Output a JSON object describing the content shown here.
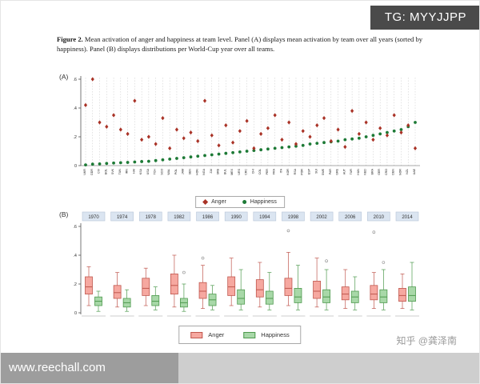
{
  "overlays": {
    "tg_badge": "TG: MYYJJPP",
    "watermark_url": "www.reechall.com",
    "credit": "知乎 @龚泽南"
  },
  "caption": {
    "label": "Figure 2.",
    "text": " Mean activation of anger and happiness at team level. Panel (A) displays mean activation by team over all years (sorted by happiness). Panel (B) displays distributions per World-Cup year over all teams."
  },
  "panels": {
    "a_tag": "(A)",
    "b_tag": "(B)"
  },
  "chart_data": [
    {
      "type": "scatter",
      "panel": "A",
      "ylim": [
        0,
        0.6
      ],
      "yticks": [
        0,
        0.2,
        0.4,
        0.6
      ],
      "ytick_labels": [
        "0",
        ".2",
        ".4",
        ".6"
      ],
      "grid": "vertical-dashed",
      "legend_position": "bottom",
      "categories": [
        "UKR",
        "DDR",
        "CIV",
        "BOL",
        "SVK",
        "TUN",
        "IRN",
        "HAI",
        "KSA",
        "USA",
        "TCH",
        "SCO",
        "WAL",
        "POL",
        "JAM",
        "SEN",
        "HON",
        "NGA",
        "ZAI",
        "SRB",
        "BUL",
        "MEX",
        "URS",
        "CRC",
        "CHI",
        "COL",
        "PER",
        "FRA",
        "ITA",
        "KOR",
        "RSA",
        "POR",
        "ESP",
        "SUI",
        "SWE",
        "PAR",
        "GRE",
        "AUT",
        "TUR",
        "HUN",
        "NED",
        "BRA",
        "GER",
        "CRO",
        "DEN",
        "NOR",
        "NZL",
        "UAE"
      ],
      "series": [
        {
          "name": "Anger",
          "marker": "diamond",
          "color": "#a93226",
          "values": [
            0.42,
            0.6,
            0.3,
            0.27,
            0.35,
            0.25,
            0.22,
            0.45,
            0.18,
            0.2,
            0.15,
            0.33,
            0.12,
            0.25,
            0.19,
            0.23,
            0.17,
            0.45,
            0.21,
            0.14,
            0.28,
            0.16,
            0.24,
            0.31,
            0.12,
            0.22,
            0.26,
            0.35,
            0.18,
            0.3,
            0.15,
            0.24,
            0.2,
            0.28,
            0.33,
            0.17,
            0.25,
            0.13,
            0.38,
            0.22,
            0.3,
            0.18,
            0.26,
            0.21,
            0.35,
            0.23,
            0.28,
            0.12
          ]
        },
        {
          "name": "Happiness",
          "marker": "circle",
          "color": "#1d7a36",
          "values": [
            0.005,
            0.01,
            0.012,
            0.015,
            0.018,
            0.02,
            0.022,
            0.025,
            0.028,
            0.03,
            0.035,
            0.04,
            0.045,
            0.05,
            0.055,
            0.06,
            0.065,
            0.07,
            0.075,
            0.08,
            0.085,
            0.09,
            0.095,
            0.1,
            0.105,
            0.11,
            0.115,
            0.12,
            0.125,
            0.13,
            0.135,
            0.14,
            0.15,
            0.155,
            0.16,
            0.165,
            0.17,
            0.18,
            0.185,
            0.19,
            0.2,
            0.21,
            0.22,
            0.23,
            0.24,
            0.25,
            0.27,
            0.3
          ]
        }
      ]
    },
    {
      "type": "boxplot",
      "panel": "B",
      "ylim": [
        0,
        0.6
      ],
      "yticks": [
        0,
        0.2,
        0.4,
        0.6
      ],
      "ytick_labels": [
        "0",
        ".2",
        ".4",
        ".6"
      ],
      "year_box_fill": "#dbe5f1",
      "year_box_stroke": "#b6c4d8",
      "legend_position": "bottom",
      "years": [
        "1970",
        "1974",
        "1978",
        "1982",
        "1986",
        "1990",
        "1994",
        "1998",
        "2002",
        "2006",
        "2010",
        "2014"
      ],
      "series": [
        {
          "name": "Anger",
          "color": "#c0574e",
          "fill": "#f6a8a0",
          "boxes": [
            {
              "lo": 0.05,
              "q1": 0.13,
              "med": 0.18,
              "q3": 0.25,
              "hi": 0.32,
              "out": []
            },
            {
              "lo": 0.04,
              "q1": 0.1,
              "med": 0.14,
              "q3": 0.19,
              "hi": 0.28,
              "out": []
            },
            {
              "lo": 0.05,
              "q1": 0.12,
              "med": 0.17,
              "q3": 0.24,
              "hi": 0.31,
              "out": []
            },
            {
              "lo": 0.04,
              "q1": 0.13,
              "med": 0.19,
              "q3": 0.27,
              "hi": 0.4,
              "out": []
            },
            {
              "lo": 0.03,
              "q1": 0.1,
              "med": 0.15,
              "q3": 0.21,
              "hi": 0.33,
              "out": [
                0.38
              ]
            },
            {
              "lo": 0.05,
              "q1": 0.12,
              "med": 0.18,
              "q3": 0.25,
              "hi": 0.38,
              "out": []
            },
            {
              "lo": 0.04,
              "q1": 0.11,
              "med": 0.16,
              "q3": 0.23,
              "hi": 0.35,
              "out": []
            },
            {
              "lo": 0.05,
              "q1": 0.12,
              "med": 0.17,
              "q3": 0.24,
              "hi": 0.42,
              "out": [
                0.57
              ]
            },
            {
              "lo": 0.04,
              "q1": 0.1,
              "med": 0.15,
              "q3": 0.22,
              "hi": 0.38,
              "out": []
            },
            {
              "lo": 0.03,
              "q1": 0.09,
              "med": 0.13,
              "q3": 0.18,
              "hi": 0.3,
              "out": []
            },
            {
              "lo": 0.03,
              "q1": 0.09,
              "med": 0.13,
              "q3": 0.19,
              "hi": 0.28,
              "out": [
                0.56
              ]
            },
            {
              "lo": 0.03,
              "q1": 0.08,
              "med": 0.12,
              "q3": 0.17,
              "hi": 0.27,
              "out": []
            }
          ]
        },
        {
          "name": "Happiness",
          "color": "#4e9a4e",
          "fill": "#a8d8a8",
          "boxes": [
            {
              "lo": 0.01,
              "q1": 0.05,
              "med": 0.08,
              "q3": 0.11,
              "hi": 0.15,
              "out": []
            },
            {
              "lo": 0.01,
              "q1": 0.04,
              "med": 0.07,
              "q3": 0.1,
              "hi": 0.16,
              "out": []
            },
            {
              "lo": 0.02,
              "q1": 0.05,
              "med": 0.08,
              "q3": 0.12,
              "hi": 0.18,
              "out": []
            },
            {
              "lo": 0.01,
              "q1": 0.04,
              "med": 0.07,
              "q3": 0.1,
              "hi": 0.2,
              "out": [
                0.28
              ]
            },
            {
              "lo": 0.02,
              "q1": 0.05,
              "med": 0.09,
              "q3": 0.13,
              "hi": 0.19,
              "out": []
            },
            {
              "lo": 0.02,
              "q1": 0.06,
              "med": 0.1,
              "q3": 0.16,
              "hi": 0.3,
              "out": []
            },
            {
              "lo": 0.02,
              "q1": 0.06,
              "med": 0.1,
              "q3": 0.15,
              "hi": 0.28,
              "out": []
            },
            {
              "lo": 0.02,
              "q1": 0.07,
              "med": 0.11,
              "q3": 0.17,
              "hi": 0.33,
              "out": []
            },
            {
              "lo": 0.02,
              "q1": 0.07,
              "med": 0.11,
              "q3": 0.16,
              "hi": 0.3,
              "out": [
                0.36
              ]
            },
            {
              "lo": 0.02,
              "q1": 0.07,
              "med": 0.11,
              "q3": 0.15,
              "hi": 0.25,
              "out": []
            },
            {
              "lo": 0.02,
              "q1": 0.07,
              "med": 0.11,
              "q3": 0.16,
              "hi": 0.3,
              "out": [
                0.35
              ]
            },
            {
              "lo": 0.02,
              "q1": 0.08,
              "med": 0.12,
              "q3": 0.18,
              "hi": 0.35,
              "out": []
            }
          ]
        }
      ]
    }
  ]
}
